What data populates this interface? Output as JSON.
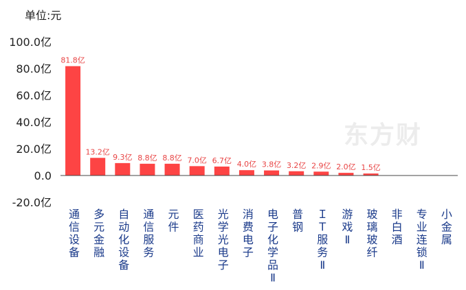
{
  "unit_label": "单位:元",
  "watermark": "东方财",
  "chart_data": {
    "type": "bar",
    "categories": [
      "通信设备",
      "多元金融",
      "自动化设备",
      "通信服务",
      "元件",
      "医药商业",
      "光学光电子",
      "消费电子",
      "电子化学品Ⅱ",
      "普钢",
      "ＩＴ服务Ⅱ",
      "游戏Ⅱ",
      "玻璃玻纤",
      "非白酒",
      "专业连锁Ⅱ",
      "小金属"
    ],
    "values": [
      81.8,
      13.2,
      9.3,
      8.8,
      8.8,
      7.0,
      6.7,
      4.0,
      3.8,
      3.2,
      2.9,
      2.0,
      1.5,
      0,
      0,
      0
    ],
    "data_labels": [
      "81.8亿",
      "13.2亿",
      "9.3亿",
      "8.8亿",
      "8.8亿",
      "7.0亿",
      "6.7亿",
      "4.0亿",
      "3.8亿",
      "3.2亿",
      "2.9亿",
      "2.0亿",
      "1.5亿",
      "",
      "",
      ""
    ],
    "yticks": [
      "100.0亿",
      "80.0亿",
      "60.0亿",
      "40.0亿",
      "20.0亿",
      "0.0",
      "-20.0亿"
    ],
    "ytick_values": [
      100,
      80,
      60,
      40,
      20,
      0,
      -20
    ],
    "ylim": [
      -20,
      100
    ],
    "bar_color": "#fd4444",
    "label_color": "#e84444",
    "category_color": "#1a3a8a",
    "grid": false
  }
}
